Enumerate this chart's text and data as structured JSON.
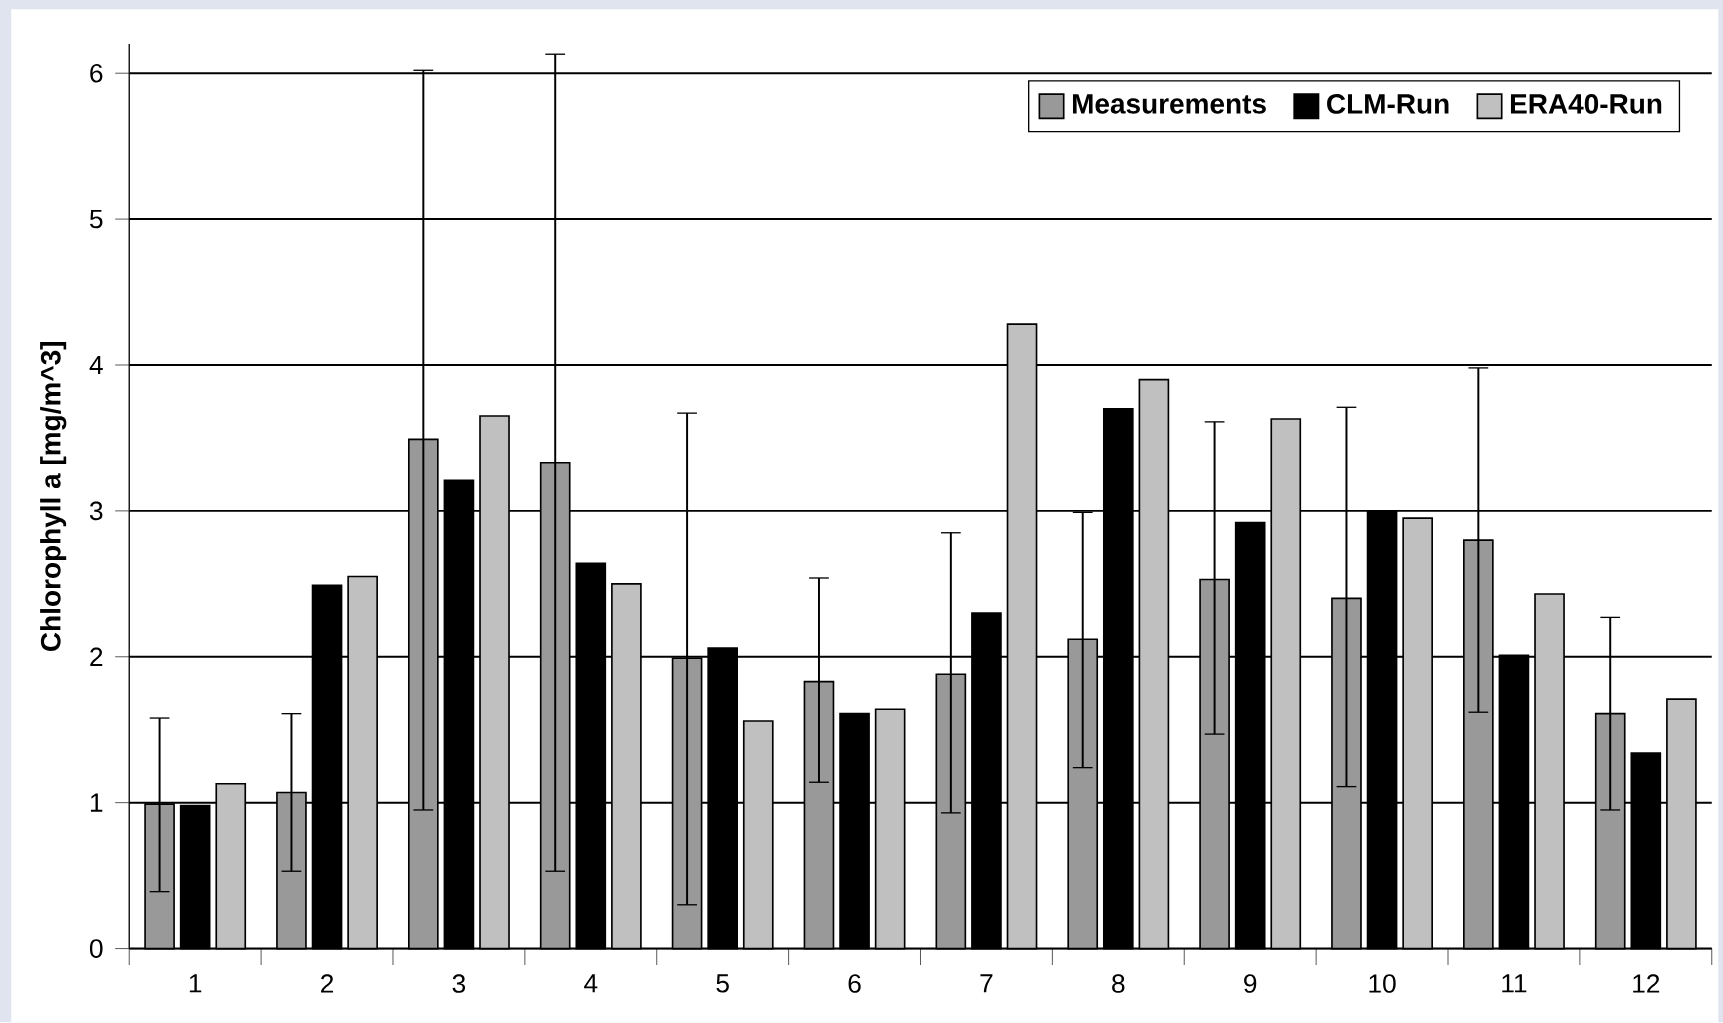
{
  "chart_data": {
    "type": "bar",
    "ylabel": "Chlorophyll a [mg/m^3]",
    "categories": [
      "1",
      "2",
      "3",
      "4",
      "5",
      "6",
      "7",
      "8",
      "9",
      "10",
      "11",
      "12"
    ],
    "series": [
      {
        "name": "Measurements",
        "color": "#999999",
        "values": [
          0.99,
          1.07,
          3.49,
          3.33,
          1.99,
          1.83,
          1.88,
          2.12,
          2.53,
          2.4,
          2.8,
          1.61
        ],
        "errors": [
          [
            0.39,
            1.58
          ],
          [
            0.53,
            1.61
          ],
          [
            0.95,
            6.02
          ],
          [
            0.53,
            6.13
          ],
          [
            0.3,
            3.67
          ],
          [
            1.14,
            2.54
          ],
          [
            0.93,
            2.85
          ],
          [
            1.24,
            2.99
          ],
          [
            1.47,
            3.61
          ],
          [
            1.11,
            3.71
          ],
          [
            1.62,
            3.98
          ],
          [
            0.95,
            2.27
          ]
        ]
      },
      {
        "name": "CLM-Run",
        "color": "#000000",
        "values": [
          0.98,
          2.49,
          3.21,
          2.64,
          2.06,
          1.61,
          2.3,
          3.7,
          2.92,
          3.0,
          2.01,
          1.34
        ]
      },
      {
        "name": "ERA40-Run",
        "color": "#c0c0c0",
        "values": [
          1.13,
          2.55,
          3.65,
          2.5,
          1.56,
          1.64,
          4.28,
          3.9,
          3.63,
          2.95,
          2.43,
          1.71
        ]
      }
    ],
    "ylim": [
      0,
      6.2
    ],
    "yticks": [
      0,
      1,
      2,
      3,
      4,
      5,
      6
    ],
    "grid": "y",
    "legend": "top right"
  }
}
